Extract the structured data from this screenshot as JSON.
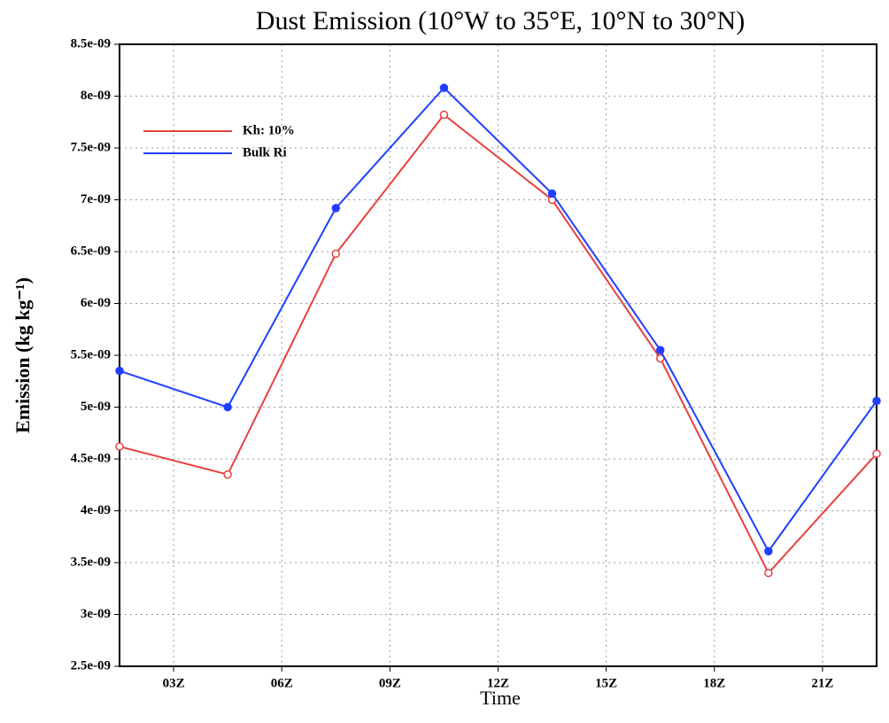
{
  "chart_data": {
    "type": "line",
    "title": "Dust Emission (10°W to 35°E, 10°N to 30°N)",
    "x_label": "Time",
    "y_label": "Emission (kg kg⁻¹)",
    "x": [
      1.5,
      4.5,
      7.5,
      10.5,
      13.5,
      16.5,
      19.5,
      22.5
    ],
    "series": [
      {
        "name": "Kh: 10%",
        "color": "#e8403f",
        "marker": "open",
        "values": [
          4.62e-09,
          4.35e-09,
          6.48e-09,
          7.82e-09,
          7e-09,
          5.47e-09,
          3.4e-09,
          4.55e-09
        ]
      },
      {
        "name": "Bulk Ri",
        "color": "#1f3fff",
        "marker": "filled",
        "values": [
          5.35e-09,
          5e-09,
          6.92e-09,
          8.08e-09,
          7.06e-09,
          5.55e-09,
          3.61e-09,
          5.06e-09
        ]
      }
    ],
    "xlim": [
      1.5,
      22.5
    ],
    "xticks": [
      {
        "value": 3,
        "label": "03Z"
      },
      {
        "value": 6,
        "label": "06Z"
      },
      {
        "value": 9,
        "label": "09Z"
      },
      {
        "value": 12,
        "label": "12Z"
      },
      {
        "value": 15,
        "label": "15Z"
      },
      {
        "value": 18,
        "label": "18Z"
      },
      {
        "value": 21,
        "label": "21Z"
      }
    ],
    "ylim": [
      2.5e-09,
      8.5e-09
    ],
    "yticks": [
      {
        "value": 2.5e-09,
        "label": "2.5e-09"
      },
      {
        "value": 3e-09,
        "label": "3e-09"
      },
      {
        "value": 3.5e-09,
        "label": "3.5e-09"
      },
      {
        "value": 4e-09,
        "label": "4e-09"
      },
      {
        "value": 4.5e-09,
        "label": "4.5e-09"
      },
      {
        "value": 5e-09,
        "label": "5e-09"
      },
      {
        "value": 5.5e-09,
        "label": "5.5e-09"
      },
      {
        "value": 6e-09,
        "label": "6e-09"
      },
      {
        "value": 6.5e-09,
        "label": "6.5e-09"
      },
      {
        "value": 7e-09,
        "label": "7e-09"
      },
      {
        "value": 7.5e-09,
        "label": "7.5e-09"
      },
      {
        "value": 8e-09,
        "label": "8e-09"
      },
      {
        "value": 8.5e-09,
        "label": "8.5e-09"
      }
    ],
    "grid": true,
    "legend": "upper-left"
  }
}
